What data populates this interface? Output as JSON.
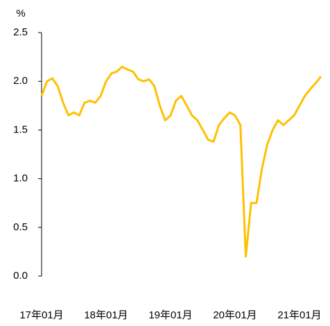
{
  "chart_data": {
    "type": "line",
    "y_label": "%",
    "categories": [
      "17年01月",
      null,
      null,
      null,
      null,
      null,
      null,
      null,
      null,
      null,
      null,
      null,
      "18年01月",
      null,
      null,
      null,
      null,
      null,
      null,
      null,
      null,
      null,
      null,
      null,
      "19年01月",
      null,
      null,
      null,
      null,
      null,
      null,
      null,
      null,
      null,
      null,
      null,
      "20年01月",
      null,
      null,
      null,
      null,
      null,
      null,
      null,
      null,
      null,
      null,
      null,
      "21年01月",
      null,
      null,
      null,
      null
    ],
    "series": [
      {
        "name": "%",
        "color": "#ffc000",
        "values": [
          1.85,
          2.0,
          2.03,
          1.95,
          1.78,
          1.65,
          1.68,
          1.65,
          1.78,
          1.8,
          1.78,
          1.85,
          2.0,
          2.08,
          2.1,
          2.15,
          2.12,
          2.1,
          2.02,
          2.0,
          2.02,
          1.95,
          1.75,
          1.6,
          1.65,
          1.8,
          1.85,
          1.75,
          1.65,
          1.6,
          1.5,
          1.4,
          1.38,
          1.55,
          1.62,
          1.68,
          1.65,
          1.55,
          0.2,
          0.75,
          0.75,
          1.1,
          1.35,
          1.5,
          1.6,
          1.55,
          1.6,
          1.65,
          1.75,
          1.85,
          1.92,
          1.98,
          2.05
        ]
      }
    ],
    "ylim": [
      0,
      2.5
    ],
    "yticks": [
      {
        "value": 0,
        "label": "0.0"
      },
      {
        "value": 0.5,
        "label": "0.5"
      },
      {
        "value": 1,
        "label": "1.0"
      },
      {
        "value": 1.5,
        "label": "1.5"
      },
      {
        "value": 2,
        "label": "2.0"
      },
      {
        "value": 2.5,
        "label": "2.5"
      }
    ]
  }
}
